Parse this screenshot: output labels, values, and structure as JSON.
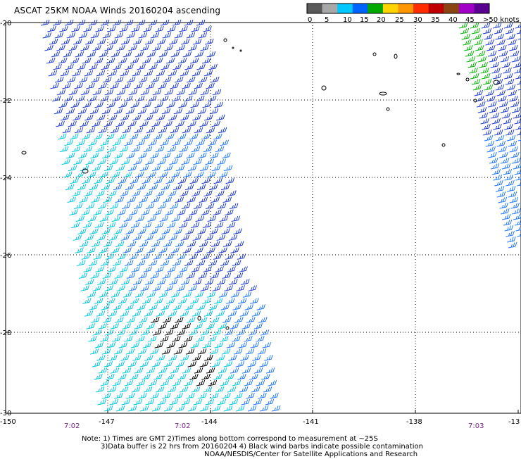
{
  "title": "ASCAT 25KM NOAA Winds 20160204 ascending",
  "legend": {
    "ticks": [
      "0",
      "5",
      "10",
      "15",
      "20",
      "25",
      "30",
      "35",
      "40",
      "45",
      ">50 knots"
    ],
    "colors": [
      "#5a5a5a",
      "#a8a8a8",
      "#00c8ff",
      "#0064ff",
      "#00aa00",
      "#ffd400",
      "#ff9600",
      "#ff2d00",
      "#c00000",
      "#8b4513",
      "#a000c8",
      "#5a0090"
    ]
  },
  "axes": {
    "lat_labels": [
      "-20",
      "-22",
      "-24",
      "-26",
      "-28",
      "-30"
    ],
    "lon_labels": [
      "-150",
      "-147",
      "-144",
      "-141",
      "-138",
      "-13"
    ]
  },
  "times": [
    "7:02",
    "7:02",
    "7:03"
  ],
  "notes": {
    "line1": "Note: 1) Times are GMT 2)Times along bottom correspond to measurement at ~25S",
    "line2": "3)Data buffer is 22 hrs from 20160204 4) Black wind barbs indicate possible contamination",
    "line3": "NOAA/NESDIS/Center for Satellite Applications and Research"
  },
  "map_features": {
    "swath_colors": {
      "high": "#1e3cd2",
      "mid": "#1e78ff",
      "low": "#00c8e6",
      "contaminated": "#000000",
      "light": "#00b400"
    }
  }
}
